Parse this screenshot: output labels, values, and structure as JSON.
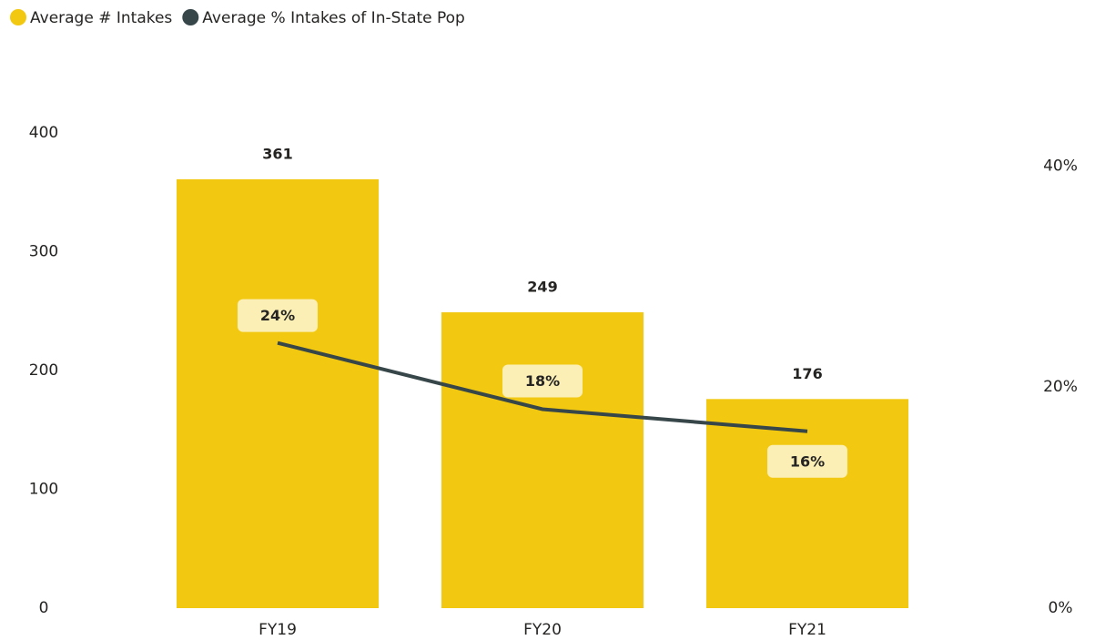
{
  "chart_data": {
    "type": "bar_line",
    "categories": [
      "FY19",
      "FY20",
      "FY21"
    ],
    "series": [
      {
        "name": "Average # Intakes",
        "color": "#F2C811",
        "values": [
          361,
          249,
          176
        ]
      },
      {
        "name": "Average % Intakes of In-State Pop",
        "color": "#374649",
        "values": [
          24,
          18,
          16
        ],
        "value_labels": [
          "24%",
          "18%",
          "16%"
        ],
        "axis": "y2"
      }
    ],
    "ylim": [
      0,
      400
    ],
    "yticks": [
      0,
      100,
      200,
      300,
      400
    ],
    "y2lim": [
      0,
      43
    ],
    "y2ticks": [
      {
        "value": 0,
        "label": "0%"
      },
      {
        "value": 20,
        "label": "20%"
      },
      {
        "value": 40,
        "label": "40%"
      }
    ],
    "legend": "top-left",
    "grid": false
  }
}
